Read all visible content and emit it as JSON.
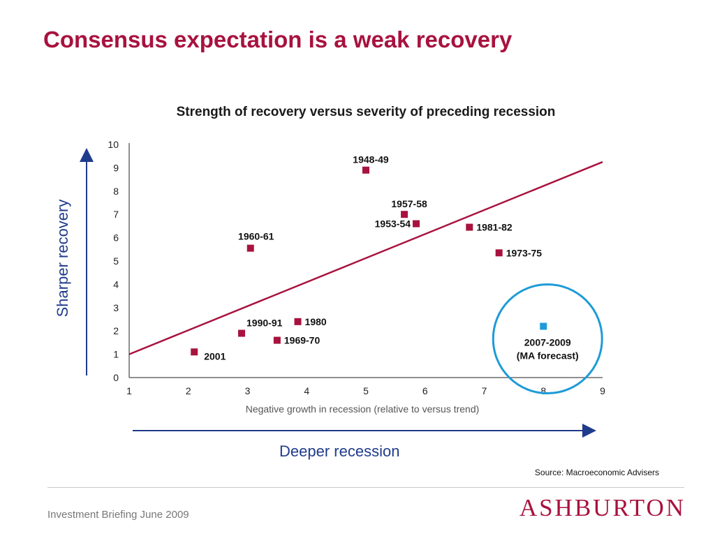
{
  "slide": {
    "title": "Consensus expectation is a weak recovery",
    "y_caption": "Sharper recovery",
    "x_caption": "Deeper recession",
    "source": "Source: Macroeconomic Advisers",
    "footer": "Investment Briefing June 2009",
    "logo": "ASHBURTON"
  },
  "colors": {
    "title": "#a8123e",
    "point": "#a8123e",
    "forecast_point": "#1e9bd7",
    "trend_line": "#a8123e",
    "axis_arrows": "#1f3b8c",
    "highlight_circle": "#1e9bd7"
  },
  "chart_data": {
    "type": "scatter",
    "title": "Strength of recovery versus severity of preceding recession",
    "xlabel": "Negative growth in recession (relative to versus trend)",
    "ylabel": "",
    "xlim": [
      1,
      9
    ],
    "ylim": [
      0,
      10
    ],
    "x_ticks": [
      "1",
      "2",
      "3",
      "4",
      "5",
      "6",
      "7",
      "8",
      "9"
    ],
    "y_ticks": [
      "0",
      "1",
      "2",
      "3",
      "4",
      "5",
      "6",
      "7",
      "8",
      "9",
      "10"
    ],
    "points": [
      {
        "label": "1948-49",
        "x": 5.0,
        "y": 8.9
      },
      {
        "label": "1957-58",
        "x": 5.65,
        "y": 7.0
      },
      {
        "label": "1953-54",
        "x": 5.85,
        "y": 6.6
      },
      {
        "label": "1981-82",
        "x": 6.75,
        "y": 6.45
      },
      {
        "label": "1973-75",
        "x": 7.25,
        "y": 5.35
      },
      {
        "label": "1960-61",
        "x": 3.05,
        "y": 5.55
      },
      {
        "label": "1990-91",
        "x": 2.9,
        "y": 1.9
      },
      {
        "label": "1980",
        "x": 3.85,
        "y": 2.4
      },
      {
        "label": "1969-70",
        "x": 3.5,
        "y": 1.6
      },
      {
        "label": "2001",
        "x": 2.1,
        "y": 1.1
      }
    ],
    "forecast_point": {
      "label_line1": "2007-2009",
      "label_line2": "(MA forecast)",
      "x": 8.0,
      "y": 2.2
    },
    "trend_line": {
      "x": [
        1,
        9
      ],
      "y": [
        1.0,
        9.25
      ]
    }
  }
}
